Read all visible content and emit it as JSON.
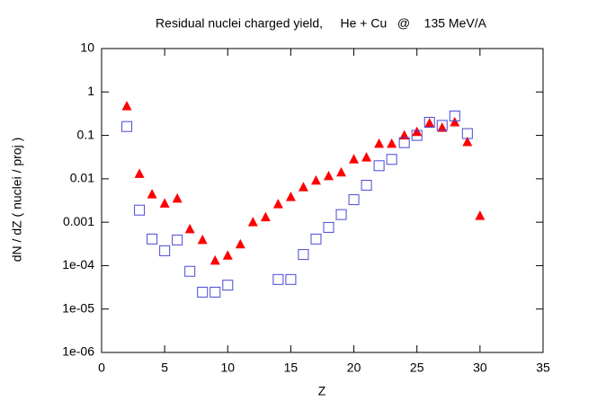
{
  "chart_data": {
    "type": "scatter",
    "title": "Residual nuclei charged yield,     He + Cu   @    135 MeV/A",
    "x_label": "Z",
    "y_label": "dN / dZ ( nuclei / proj )",
    "x": [
      2,
      3,
      4,
      5,
      6,
      7,
      8,
      9,
      10,
      11,
      12,
      13,
      14,
      15,
      16,
      17,
      18,
      19,
      20,
      21,
      22,
      23,
      24,
      25,
      26,
      27,
      28,
      29,
      30
    ],
    "series": [
      {
        "color": "#ff0000",
        "marker": "triangle",
        "values": [
          0.47,
          0.013,
          0.0044,
          0.0027,
          0.0035,
          0.00069,
          0.00039,
          0.00013,
          0.00017,
          0.00031,
          0.001,
          0.0013,
          0.0026,
          0.0038,
          0.0064,
          0.0091,
          0.0115,
          0.014,
          0.028,
          0.031,
          0.064,
          0.064,
          0.1,
          0.12,
          0.19,
          0.15,
          0.2,
          0.07,
          0.0014
        ]
      },
      {
        "color": "#4848d8",
        "marker": "open-square",
        "values": [
          0.16,
          0.0019,
          0.00041,
          0.00022,
          0.00039,
          7.4e-05,
          2.45e-05,
          2.45e-05,
          3.55e-05,
          null,
          null,
          null,
          4.8e-05,
          4.8e-05,
          0.00018,
          0.00041,
          0.00076,
          0.0015,
          0.0033,
          0.0071,
          0.02,
          0.028,
          0.068,
          0.1,
          0.2,
          0.17,
          0.28,
          0.11,
          null
        ]
      }
    ],
    "xlim": [
      0,
      35
    ],
    "xticks": [
      0,
      5,
      10,
      15,
      20,
      25,
      30,
      35
    ],
    "ylim": [
      1e-06,
      10
    ],
    "log_y": true,
    "yticks": [
      10,
      1,
      0.1,
      0.01,
      0.001,
      {
        "value": 0.0001,
        "label": "1e-04"
      },
      {
        "value": 1e-05,
        "label": "1e-05"
      },
      {
        "value": 1e-06,
        "label": "1e-06"
      }
    ]
  }
}
